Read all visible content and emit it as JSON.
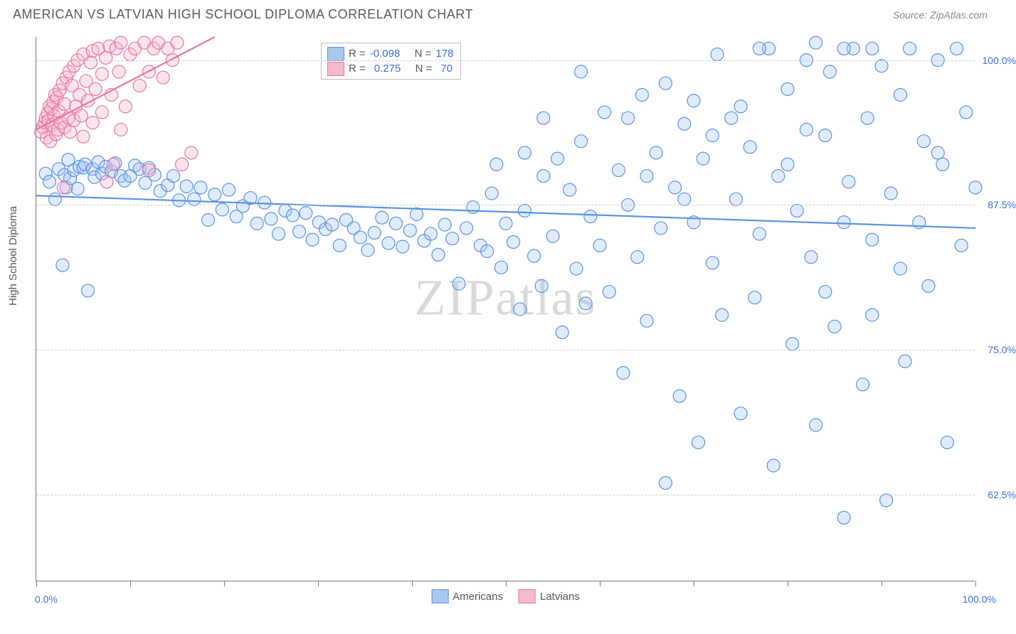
{
  "header": {
    "title": "AMERICAN VS LATVIAN HIGH SCHOOL DIPLOMA CORRELATION CHART",
    "source": "Source: ZipAtlas.com"
  },
  "watermark": "ZIPatlas",
  "chart": {
    "type": "scatter",
    "ylabel": "High School Diploma",
    "xlim": [
      0,
      100
    ],
    "ylim": [
      55,
      102
    ],
    "xticks": [
      0,
      10,
      20,
      30,
      40,
      50,
      60,
      70,
      80,
      90,
      100
    ],
    "xtick_labels": {
      "0": "0.0%",
      "100": "100.0%"
    },
    "yticks": [
      62.5,
      75.0,
      87.5,
      100.0
    ],
    "ytick_labels": [
      "62.5%",
      "75.0%",
      "87.5%",
      "100.0%"
    ],
    "grid_color": "#cccccc",
    "background_color": "#ffffff",
    "marker_radius": 9,
    "marker_stroke_width": 1.2,
    "marker_fill_opacity": 0.35,
    "trend_line_width": 2.2
  },
  "series": [
    {
      "name": "Americans",
      "color_stroke": "#5a93e6",
      "color_fill": "#a8c8f0",
      "r_value": "-0.098",
      "n_value": "178",
      "trend": {
        "x1": 0,
        "y1": 88.3,
        "x2": 100,
        "y2": 85.5
      },
      "points": [
        [
          1,
          90.2
        ],
        [
          1.4,
          89.5
        ],
        [
          2,
          88.0
        ],
        [
          2.4,
          90.6
        ],
        [
          2.8,
          82.3
        ],
        [
          3,
          90.1
        ],
        [
          3.2,
          89.0
        ],
        [
          3.4,
          91.4
        ],
        [
          3.6,
          89.8
        ],
        [
          4,
          90.5
        ],
        [
          4.4,
          88.9
        ],
        [
          4.6,
          90.8
        ],
        [
          5,
          90.7
        ],
        [
          5.2,
          91.0
        ],
        [
          5.5,
          80.1
        ],
        [
          6,
          90.6
        ],
        [
          6.2,
          89.9
        ],
        [
          6.6,
          91.2
        ],
        [
          7,
          90.2
        ],
        [
          7.4,
          90.8
        ],
        [
          8,
          90.4
        ],
        [
          8.4,
          91.1
        ],
        [
          9,
          90.0
        ],
        [
          9.4,
          89.6
        ],
        [
          10,
          90.0
        ],
        [
          10.5,
          90.9
        ],
        [
          11,
          90.6
        ],
        [
          11.6,
          89.4
        ],
        [
          12,
          90.7
        ],
        [
          12.6,
          90.1
        ],
        [
          13.2,
          88.7
        ],
        [
          14,
          89.2
        ],
        [
          14.6,
          90.0
        ],
        [
          15.2,
          87.9
        ],
        [
          16,
          89.1
        ],
        [
          16.8,
          88.0
        ],
        [
          17.5,
          89.0
        ],
        [
          18.3,
          86.2
        ],
        [
          19,
          88.4
        ],
        [
          19.8,
          87.1
        ],
        [
          20.5,
          88.8
        ],
        [
          21.3,
          86.5
        ],
        [
          22,
          87.4
        ],
        [
          22.8,
          88.1
        ],
        [
          23.5,
          85.9
        ],
        [
          24.3,
          87.7
        ],
        [
          25,
          86.3
        ],
        [
          25.8,
          85.0
        ],
        [
          26.5,
          87.0
        ],
        [
          27.3,
          86.6
        ],
        [
          28,
          85.2
        ],
        [
          28.7,
          86.8
        ],
        [
          29.4,
          84.5
        ],
        [
          30.1,
          86.0
        ],
        [
          30.8,
          85.4
        ],
        [
          31.5,
          85.8
        ],
        [
          32.3,
          84.0
        ],
        [
          33,
          86.2
        ],
        [
          33.8,
          85.5
        ],
        [
          34.5,
          84.7
        ],
        [
          35.3,
          83.6
        ],
        [
          36,
          85.1
        ],
        [
          36.8,
          86.4
        ],
        [
          37.5,
          84.2
        ],
        [
          38.3,
          85.9
        ],
        [
          39,
          83.9
        ],
        [
          39.8,
          85.3
        ],
        [
          40.5,
          86.7
        ],
        [
          41.3,
          84.4
        ],
        [
          42,
          85.0
        ],
        [
          42.8,
          83.2
        ],
        [
          43.5,
          85.8
        ],
        [
          44.3,
          84.6
        ],
        [
          45,
          80.7
        ],
        [
          45.8,
          85.5
        ],
        [
          46.5,
          87.3
        ],
        [
          47.3,
          84.0
        ],
        [
          48,
          83.5
        ],
        [
          48.5,
          88.5
        ],
        [
          49,
          91.0
        ],
        [
          49.5,
          82.1
        ],
        [
          50,
          85.9
        ],
        [
          50.8,
          84.3
        ],
        [
          51.5,
          78.5
        ],
        [
          52,
          87.0
        ],
        [
          53,
          83.1
        ],
        [
          53.8,
          80.5
        ],
        [
          54,
          90.0
        ],
        [
          55,
          84.8
        ],
        [
          55.5,
          91.5
        ],
        [
          56,
          76.5
        ],
        [
          56.8,
          88.8
        ],
        [
          57.5,
          82.0
        ],
        [
          58,
          93.0
        ],
        [
          58.5,
          79.0
        ],
        [
          59,
          86.5
        ],
        [
          60,
          84.0
        ],
        [
          60.5,
          95.5
        ],
        [
          61,
          80.0
        ],
        [
          62,
          90.5
        ],
        [
          62.5,
          73.0
        ],
        [
          63,
          87.5
        ],
        [
          64,
          83.0
        ],
        [
          64.5,
          97.0
        ],
        [
          65,
          77.5
        ],
        [
          66,
          92.0
        ],
        [
          66.5,
          85.5
        ],
        [
          67,
          63.5
        ],
        [
          68,
          89.0
        ],
        [
          68.5,
          71.0
        ],
        [
          69,
          94.5
        ],
        [
          70,
          86.0
        ],
        [
          70.5,
          67.0
        ],
        [
          71,
          91.5
        ],
        [
          72,
          82.5
        ],
        [
          72.5,
          100.5
        ],
        [
          73,
          78.0
        ],
        [
          74,
          95.0
        ],
        [
          74.5,
          88.0
        ],
        [
          75,
          69.5
        ],
        [
          76,
          92.5
        ],
        [
          76.5,
          79.5
        ],
        [
          77,
          85.0
        ],
        [
          78,
          101.0
        ],
        [
          78.5,
          65.0
        ],
        [
          79,
          90.0
        ],
        [
          80,
          97.5
        ],
        [
          80.5,
          75.5
        ],
        [
          81,
          87.0
        ],
        [
          82,
          100.0
        ],
        [
          82.5,
          83.0
        ],
        [
          83,
          68.5
        ],
        [
          84,
          93.5
        ],
        [
          84.5,
          99.0
        ],
        [
          85,
          77.0
        ],
        [
          86,
          60.5
        ],
        [
          86.5,
          89.5
        ],
        [
          87,
          101.0
        ],
        [
          88,
          72.0
        ],
        [
          88.5,
          95.0
        ],
        [
          89,
          84.5
        ],
        [
          90,
          99.5
        ],
        [
          90.5,
          62.0
        ],
        [
          91,
          88.5
        ],
        [
          92,
          97.0
        ],
        [
          92.5,
          74.0
        ],
        [
          93,
          101.0
        ],
        [
          94,
          86.0
        ],
        [
          94.5,
          93.0
        ],
        [
          95,
          80.5
        ],
        [
          96,
          100.0
        ],
        [
          96.5,
          91.0
        ],
        [
          97,
          67.0
        ],
        [
          98,
          101.0
        ],
        [
          98.5,
          84.0
        ],
        [
          99,
          95.5
        ],
        [
          100,
          89.0
        ],
        [
          82,
          94.0
        ],
        [
          77,
          101.0
        ],
        [
          83,
          101.5
        ],
        [
          86,
          101.0
        ],
        [
          89,
          101.0
        ],
        [
          96,
          92.0
        ],
        [
          58,
          99.0
        ],
        [
          67,
          98.0
        ],
        [
          63,
          95.0
        ],
        [
          70,
          96.5
        ],
        [
          75,
          96.0
        ],
        [
          72,
          93.5
        ],
        [
          65,
          90.0
        ],
        [
          54,
          95.0
        ],
        [
          52,
          92.0
        ],
        [
          69,
          88.0
        ],
        [
          80,
          91.0
        ],
        [
          86,
          86.0
        ],
        [
          92,
          82.0
        ],
        [
          89,
          78.0
        ],
        [
          84,
          80.0
        ]
      ]
    },
    {
      "name": "Latvians",
      "color_stroke": "#e976a4",
      "color_fill": "#f4b8cf",
      "r_value": "0.275",
      "n_value": "70",
      "trend": {
        "x1": 0,
        "y1": 94.0,
        "x2": 19,
        "y2": 102.0
      },
      "points": [
        [
          0.5,
          93.8
        ],
        [
          0.7,
          94.2
        ],
        [
          0.9,
          94.6
        ],
        [
          1.0,
          95.0
        ],
        [
          1.1,
          93.3
        ],
        [
          1.2,
          95.4
        ],
        [
          1.3,
          94.8
        ],
        [
          1.4,
          96.0
        ],
        [
          1.5,
          93.0
        ],
        [
          1.6,
          95.8
        ],
        [
          1.7,
          94.4
        ],
        [
          1.8,
          96.4
        ],
        [
          1.9,
          95.2
        ],
        [
          2.0,
          97.0
        ],
        [
          2.1,
          93.6
        ],
        [
          2.2,
          96.8
        ],
        [
          2.3,
          94.0
        ],
        [
          2.4,
          95.6
        ],
        [
          2.5,
          97.4
        ],
        [
          2.6,
          94.6
        ],
        [
          2.8,
          98.0
        ],
        [
          2.9,
          89.0
        ],
        [
          3.0,
          96.2
        ],
        [
          3.0,
          94.2
        ],
        [
          3.2,
          98.5
        ],
        [
          3.4,
          95.0
        ],
        [
          3.5,
          99.0
        ],
        [
          3.6,
          93.8
        ],
        [
          3.8,
          97.8
        ],
        [
          4.0,
          99.5
        ],
        [
          4.0,
          94.8
        ],
        [
          4.2,
          96.0
        ],
        [
          4.4,
          100.0
        ],
        [
          4.6,
          97.0
        ],
        [
          4.8,
          95.2
        ],
        [
          5.0,
          100.5
        ],
        [
          5.0,
          93.4
        ],
        [
          5.3,
          98.2
        ],
        [
          5.5,
          96.5
        ],
        [
          5.8,
          99.8
        ],
        [
          6.0,
          100.8
        ],
        [
          6.0,
          94.6
        ],
        [
          6.3,
          97.5
        ],
        [
          6.6,
          101.0
        ],
        [
          7.0,
          98.8
        ],
        [
          7.0,
          95.5
        ],
        [
          7.4,
          100.2
        ],
        [
          7.8,
          101.2
        ],
        [
          8.0,
          97.0
        ],
        [
          8.5,
          101.0
        ],
        [
          8.8,
          99.0
        ],
        [
          9.0,
          101.5
        ],
        [
          9.5,
          96.0
        ],
        [
          10.0,
          100.5
        ],
        [
          10.5,
          101.0
        ],
        [
          11.0,
          97.8
        ],
        [
          11.5,
          101.5
        ],
        [
          12.0,
          99.0
        ],
        [
          12.5,
          101.0
        ],
        [
          13.0,
          101.5
        ],
        [
          13.5,
          98.5
        ],
        [
          14.0,
          101.0
        ],
        [
          14.5,
          100.0
        ],
        [
          15.0,
          101.5
        ],
        [
          7.5,
          89.5
        ],
        [
          8.2,
          91.0
        ],
        [
          9.0,
          94.0
        ],
        [
          12.0,
          90.5
        ],
        [
          15.5,
          91.0
        ],
        [
          16.5,
          92.0
        ]
      ]
    }
  ],
  "legend": {
    "r_label": "R =",
    "n_label": "N =",
    "bottom": [
      "Americans",
      "Latvians"
    ]
  }
}
